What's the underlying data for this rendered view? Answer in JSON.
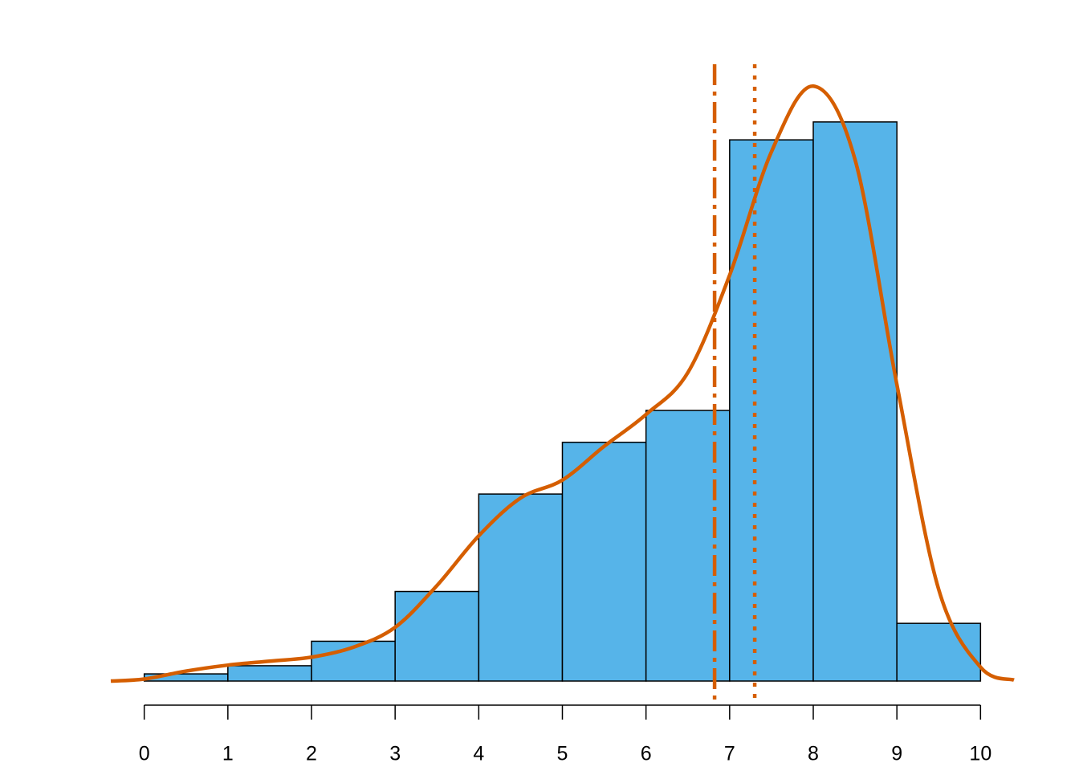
{
  "chart_data": {
    "type": "histogram",
    "bins": [
      0,
      1,
      2,
      3,
      4,
      5,
      6,
      7,
      8,
      9,
      10
    ],
    "values": [
      0.0036,
      0.0077,
      0.02,
      0.045,
      0.094,
      0.12,
      0.136,
      0.272,
      0.281,
      0.029
    ],
    "color": "#56b4e9",
    "edgecolor": "#000000",
    "density": {
      "color": "#d55e00",
      "x": [
        -0.4,
        0,
        0.5,
        1,
        1.5,
        2,
        2.5,
        3,
        3.5,
        4,
        4.5,
        5,
        5.5,
        6,
        6.5,
        7,
        7.5,
        8,
        8.5,
        9,
        9.5,
        10,
        10.4
      ],
      "values": [
        0,
        0.001,
        0.005,
        0.008,
        0.01,
        0.012,
        0.017,
        0.027,
        0.048,
        0.073,
        0.092,
        0.101,
        0.118,
        0.134,
        0.155,
        0.204,
        0.266,
        0.299,
        0.262,
        0.149,
        0.046,
        0.007,
        0.0005
      ]
    },
    "vlines": [
      {
        "value": 6.82,
        "style": "dashdot",
        "color": "#d55e00"
      },
      {
        "value": 7.3,
        "style": "dotted",
        "color": "#d55e00"
      }
    ],
    "xlim": [
      -0.4,
      10.4
    ],
    "xticks": [
      0,
      1,
      2,
      3,
      4,
      5,
      6,
      7,
      8,
      9,
      10
    ],
    "ylim": [
      0,
      0.31
    ]
  }
}
